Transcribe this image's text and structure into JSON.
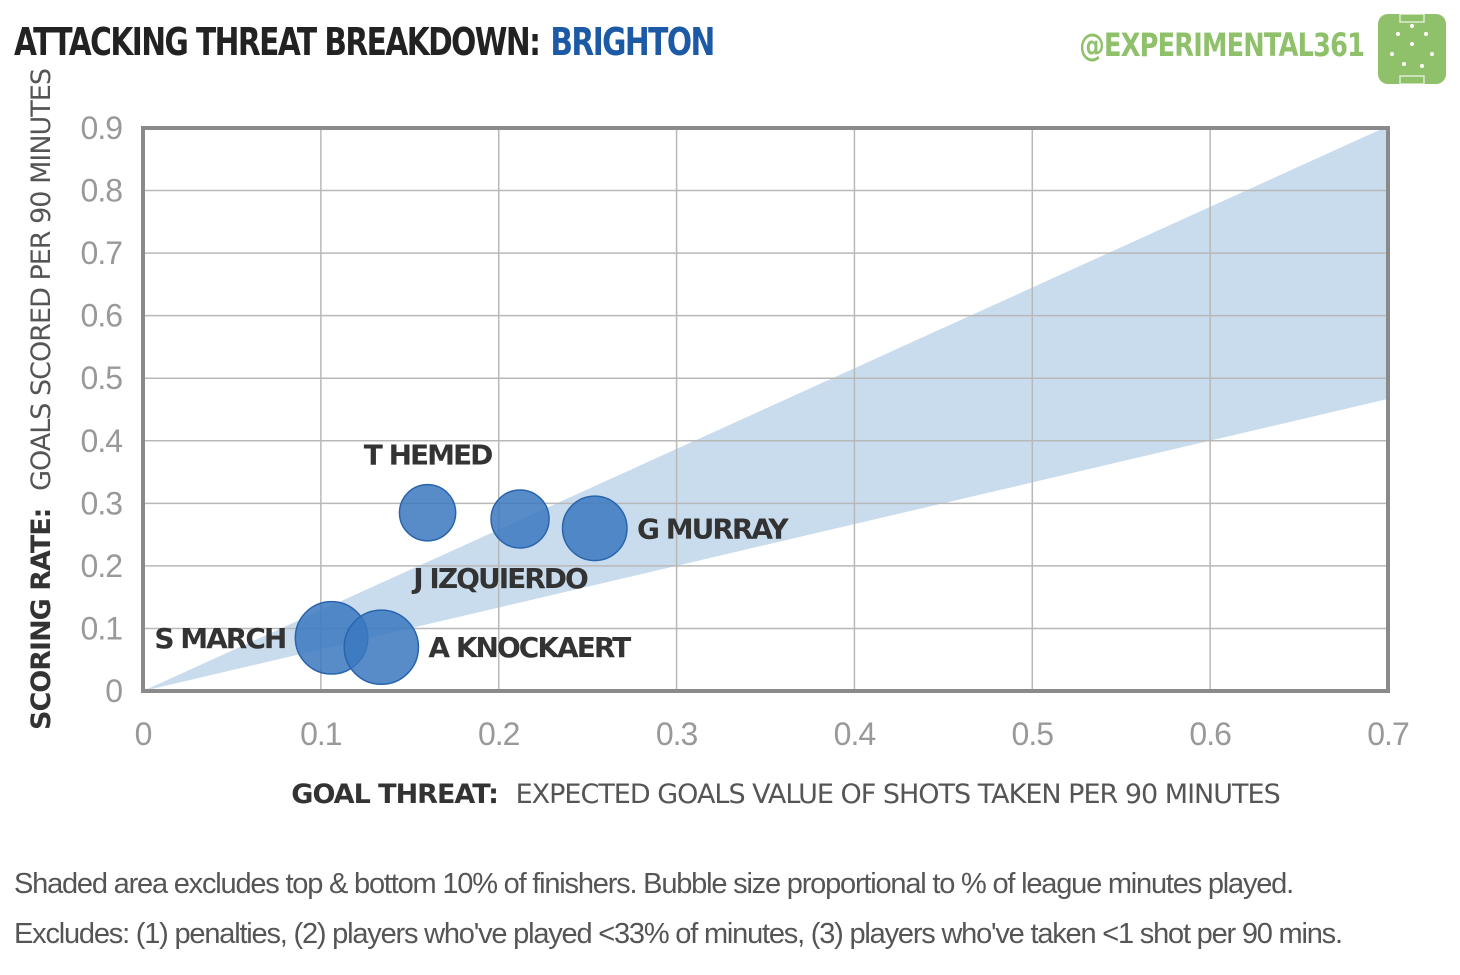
{
  "header": {
    "title_prefix": "ATTACKING THREAT BREAKDOWN:",
    "title_team": "BRIGHTON",
    "handle": "@EXPERIMENTAL361",
    "logo_icon": "pitch-logo-icon"
  },
  "colors": {
    "title_team": "#1d5aa6",
    "handle": "#8fc06a",
    "bubble": "#3a78c0",
    "band": "#c9dced"
  },
  "chart_data": {
    "type": "scatter",
    "title": "ATTACKING THREAT BREAKDOWN: BRIGHTON",
    "xlabel_bold": "GOAL THREAT:",
    "xlabel_rest": "EXPECTED GOALS VALUE OF SHOTS TAKEN PER 90 MINUTES",
    "ylabel_bold": "SCORING RATE:",
    "ylabel_rest": "GOALS SCORED PER 90 MINUTES",
    "xlim": [
      0,
      0.7
    ],
    "ylim": [
      0,
      0.9
    ],
    "xticks": [
      "0",
      "0.1",
      "0.2",
      "0.3",
      "0.4",
      "0.5",
      "0.6",
      "0.7"
    ],
    "yticks": [
      "0",
      "0.1",
      "0.2",
      "0.3",
      "0.4",
      "0.5",
      "0.6",
      "0.7",
      "0.8",
      "0.9"
    ],
    "grid": true,
    "shaded_band": {
      "upper_slope": 1.29,
      "lower_slope": 0.667
    },
    "points": [
      {
        "name": "T HEMED",
        "x": 0.16,
        "y": 0.285,
        "size": 0.45,
        "label_pos": "above"
      },
      {
        "name": "J IZQUIERDO",
        "x": 0.212,
        "y": 0.275,
        "size": 0.5,
        "label_pos": "below"
      },
      {
        "name": "G MURRAY",
        "x": 0.254,
        "y": 0.26,
        "size": 0.68,
        "label_pos": "right"
      },
      {
        "name": "S MARCH",
        "x": 0.106,
        "y": 0.085,
        "size": 0.9,
        "label_pos": "left"
      },
      {
        "name": "A KNOCKAERT",
        "x": 0.134,
        "y": 0.07,
        "size": 0.95,
        "label_pos": "right"
      }
    ]
  },
  "footnotes": {
    "line1": "Shaded area excludes top & bottom 10% of finishers. Bubble size proportional to % of league minutes played.",
    "line2": "Excludes: (1) penalties, (2) players who've played <33% of minutes, (3) players who've taken <1 shot per 90 mins."
  }
}
